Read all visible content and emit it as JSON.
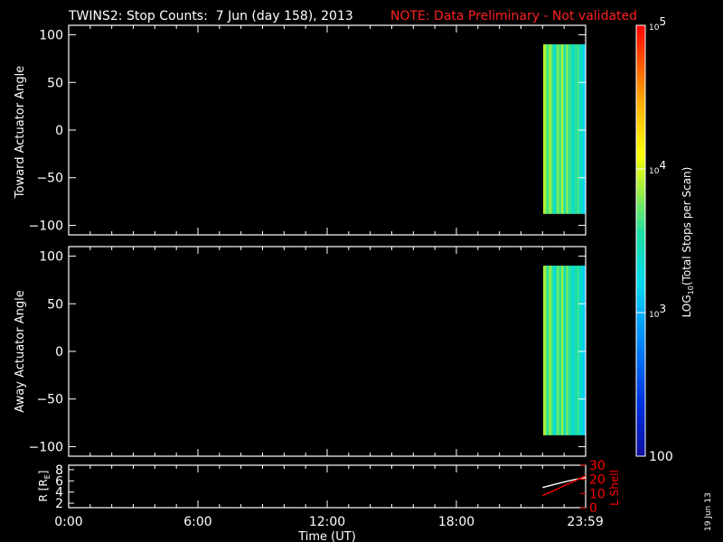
{
  "title": {
    "main": "TWINS2: Stop Counts:  7 Jun (day 158), 2013",
    "note": "NOTE: Data Preliminary - Not validated",
    "note_color": "#ff2020"
  },
  "date_stamp": "19 Jun 13",
  "colors": {
    "axes": "#ffffff",
    "background": "#000000",
    "accent": "#ff0000"
  },
  "chart_data": [
    {
      "type": "heatmap",
      "name": "toward",
      "ylabel": "Toward Actuator Angle",
      "xlim": [
        0,
        24
      ],
      "ylim": [
        -110,
        110
      ],
      "y_ticks": [
        100,
        50,
        0,
        -50,
        -100
      ],
      "y_tick_labels": [
        "100",
        "50",
        "0",
        "−50",
        "−100"
      ],
      "data_extent": {
        "x": [
          22.03,
          24.2
        ],
        "y": [
          -88,
          90
        ]
      },
      "columns_log10": [
        3.95,
        3.85,
        3.75,
        3.6,
        3.8,
        3.85,
        3.7,
        3.55,
        3.3,
        3.45,
        3.75,
        3.8,
        3.6,
        3.7,
        3.95,
        3.65,
        3.4,
        3.75,
        3.8,
        3.55,
        3.65,
        3.5,
        3.3,
        3.45,
        3.6,
        3.55,
        3.7,
        3.35,
        3.45,
        3.3,
        3.2,
        3.15
      ]
    },
    {
      "type": "heatmap",
      "name": "away",
      "ylabel": "Away Actuator Angle",
      "xlim": [
        0,
        24
      ],
      "ylim": [
        -110,
        110
      ],
      "y_ticks": [
        100,
        50,
        0,
        -50,
        -100
      ],
      "y_tick_labels": [
        "100",
        "50",
        "0",
        "−50",
        "−100"
      ],
      "data_extent": {
        "x": [
          22.03,
          24.2
        ],
        "y": [
          -88,
          90
        ]
      },
      "columns_log10": [
        3.9,
        3.85,
        3.7,
        3.55,
        3.75,
        3.85,
        3.65,
        3.5,
        3.3,
        3.4,
        3.7,
        3.75,
        3.55,
        3.65,
        3.9,
        3.6,
        3.35,
        3.7,
        3.75,
        3.5,
        3.6,
        3.45,
        3.25,
        3.4,
        3.55,
        3.5,
        3.65,
        3.3,
        3.4,
        3.25,
        3.15,
        3.1
      ]
    },
    {
      "type": "line",
      "name": "orbit",
      "ylabel_left": "R [R",
      "ylabel_left_sub": "E",
      "ylabel_left_end": "]",
      "ylabel_right": "L Shell",
      "xlabel": "Time (UT)",
      "xlim": [
        0,
        24
      ],
      "x_ticks": [
        0,
        6,
        12,
        18,
        23.983
      ],
      "x_tick_labels": [
        "0:00",
        "6:00",
        "12:00",
        "18:00",
        "23:59"
      ],
      "y_left_lim": [
        1.2,
        8.8
      ],
      "y_left_ticks": [
        2,
        4,
        6,
        8
      ],
      "y_left_tick_labels": [
        "2",
        "4",
        "6",
        "8"
      ],
      "y_right_lim": [
        0,
        30
      ],
      "y_right_ticks": [
        0,
        10,
        20,
        30
      ],
      "y_right_tick_labels": [
        "0",
        "10",
        "20",
        "30"
      ],
      "series": [
        {
          "name": "R",
          "axis": "left",
          "color": "#ffffff",
          "x": [
            22.0,
            22.5,
            23.0,
            23.5,
            24.0
          ],
          "y": [
            4.8,
            5.3,
            5.8,
            6.25,
            6.6
          ]
        },
        {
          "name": "L Shell",
          "axis": "right",
          "color": "#ff0000",
          "x": [
            22.0,
            22.5,
            23.0,
            23.5,
            24.0
          ],
          "y": [
            8.5,
            12.0,
            15.5,
            19.0,
            22.5
          ]
        }
      ]
    }
  ],
  "colorbar": {
    "label_main": "LOG",
    "label_sub": "10",
    "label_rest": "(Total Stops per Scan)",
    "log_min": 2,
    "log_max": 5,
    "ticks": [
      {
        "value": 5,
        "base": "10",
        "exp": "5"
      },
      {
        "value": 4,
        "base": "10",
        "exp": "4"
      },
      {
        "value": 3,
        "base": "10",
        "exp": "3"
      },
      {
        "value": 2,
        "base": "100",
        "exp": ""
      }
    ]
  }
}
